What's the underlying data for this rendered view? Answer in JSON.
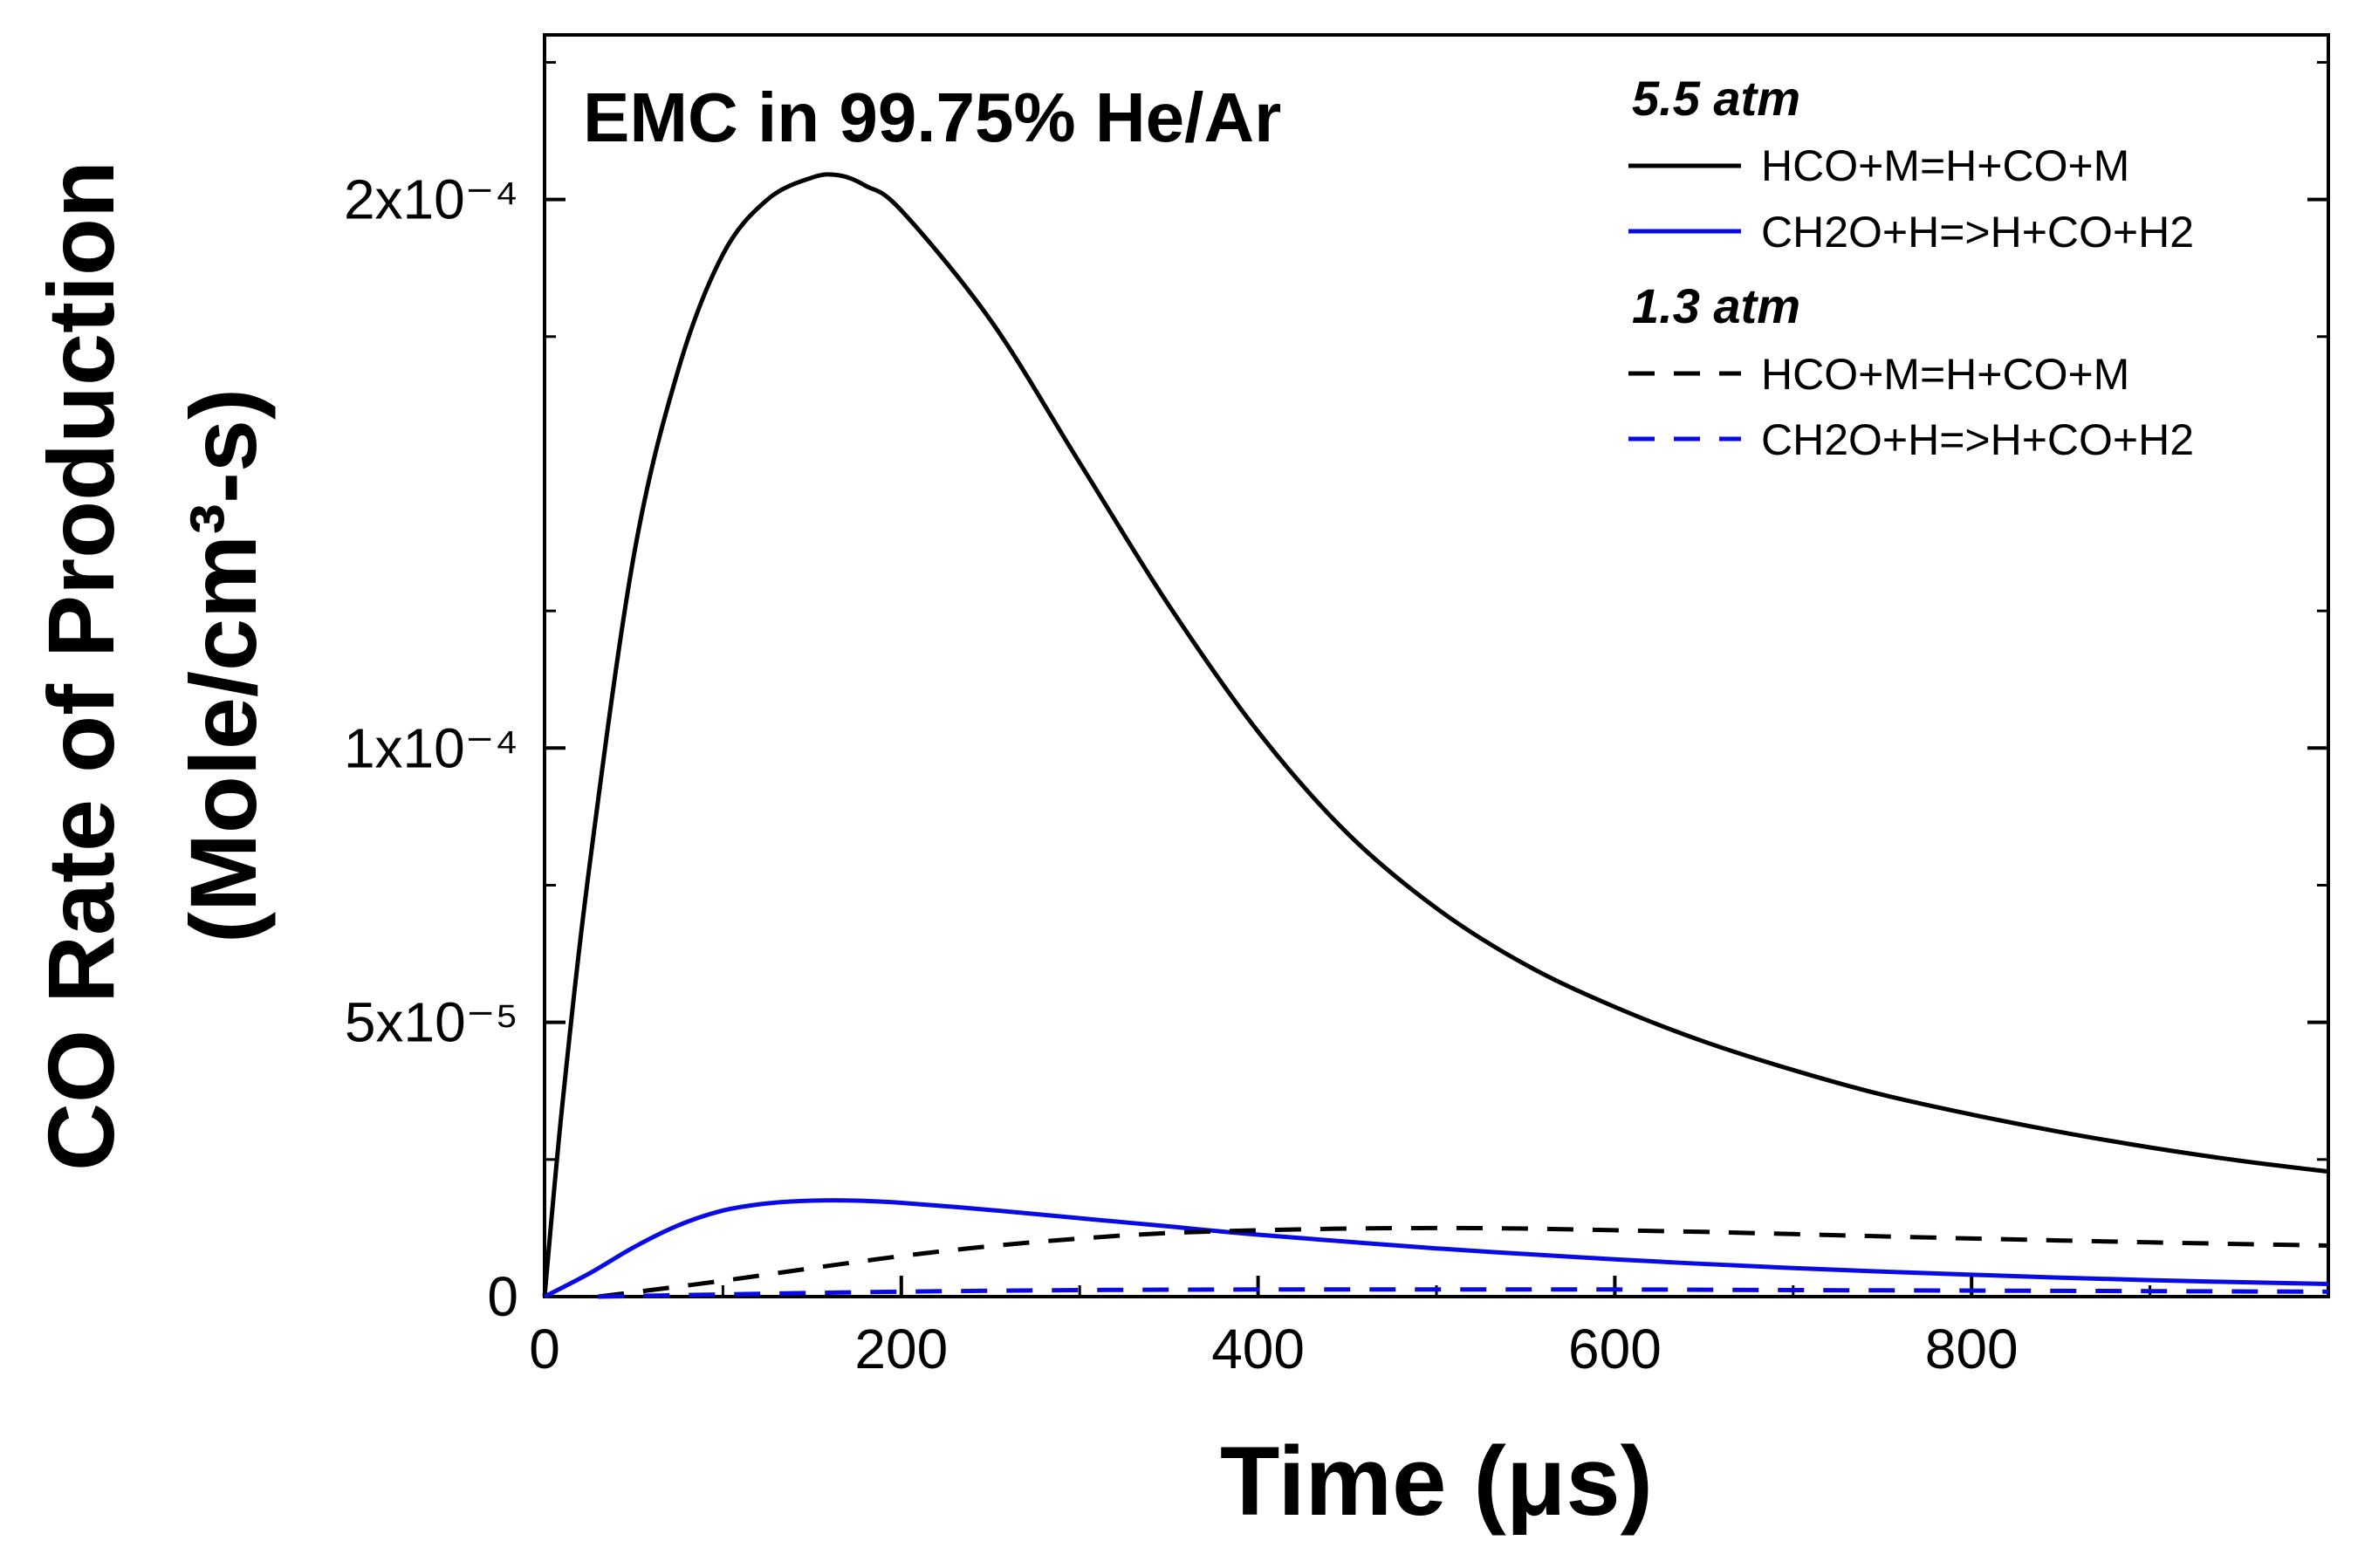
{
  "chart_data": {
    "type": "line",
    "title": "EMC in 99.75% He/Ar",
    "xlabel": "Time (μs)",
    "ylabel_line1": "CO Rate of Production",
    "ylabel_line2": "(Mole/cm³-s)",
    "xlim": [
      0,
      1000
    ],
    "ylim": [
      0,
      0.00023
    ],
    "x_ticks": [
      {
        "value": 0,
        "label": "0"
      },
      {
        "value": 200,
        "label": "200"
      },
      {
        "value": 400,
        "label": "400"
      },
      {
        "value": 600,
        "label": "600"
      },
      {
        "value": 800,
        "label": "800"
      }
    ],
    "y_ticks": [
      {
        "value": 0,
        "label": "0"
      },
      {
        "value": 5e-05,
        "label": "5x10⁻⁵"
      },
      {
        "value": 0.0001,
        "label": "1x10⁻⁴"
      },
      {
        "value": 0.0002,
        "label": "2x10⁻⁴"
      }
    ],
    "legend_groups": [
      {
        "title": "5.5 atm"
      },
      {
        "title": "1.3 atm"
      }
    ],
    "series": [
      {
        "name": "HCO+M=H+CO+M",
        "group": "5.5 atm",
        "color": "#000000",
        "dash": "solid",
        "x": [
          0,
          10,
          25,
          50,
          75,
          100,
          125,
          150,
          165,
          180,
          200,
          250,
          300,
          350,
          400,
          450,
          500,
          550,
          600,
          650,
          700,
          750,
          800,
          850,
          900,
          950,
          1000
        ],
        "y": [
          0,
          3.5e-05,
          7.8e-05,
          0.000135,
          0.000169,
          0.00019,
          0.0002,
          0.000204,
          0.0002044,
          0.0002025,
          0.000198,
          0.000178,
          0.000152,
          0.000126,
          0.000103,
          8.45e-05,
          7.08e-05,
          6.05e-05,
          5.28e-05,
          4.65e-05,
          4.13e-05,
          3.68e-05,
          3.32e-05,
          3e-05,
          2.72e-05,
          2.48e-05,
          2.28e-05
        ]
      },
      {
        "name": "CH2O+H=>H+CO+H2",
        "group": "5.5 atm",
        "color": "#0a0ae6",
        "dash": "solid",
        "x": [
          0,
          25,
          50,
          75,
          100,
          125,
          150,
          175,
          200,
          250,
          300,
          350,
          400,
          500,
          600,
          700,
          800,
          900,
          1000
        ],
        "y": [
          0,
          4.2e-06,
          9e-06,
          1.3e-05,
          1.57e-05,
          1.7e-05,
          1.75e-05,
          1.75e-05,
          1.71e-05,
          1.58e-05,
          1.43e-05,
          1.28e-05,
          1.13e-05,
          8.8e-06,
          6.8e-06,
          5.2e-06,
          4e-06,
          3e-06,
          2.3e-06
        ]
      },
      {
        "name": "HCO+M=H+CO+M",
        "group": "1.3 atm",
        "color": "#000000",
        "dash": "dashed",
        "x": [
          30,
          50,
          100,
          150,
          200,
          250,
          300,
          350,
          400,
          450,
          500,
          550,
          600,
          650,
          700,
          800,
          900,
          1000
        ],
        "y": [
          0,
          8e-07,
          2.9e-06,
          5.2e-06,
          7.4e-06,
          9.2e-06,
          1.06e-05,
          1.16e-05,
          1.21e-05,
          1.24e-05,
          1.25e-05,
          1.24e-05,
          1.21e-05,
          1.18e-05,
          1.14e-05,
          1.06e-05,
          9.9e-06,
          9.3e-06
        ]
      },
      {
        "name": "CH2O+H=>H+CO+H2",
        "group": "1.3 atm",
        "color": "#0a0ae6",
        "dash": "dashed",
        "x": [
          30,
          100,
          200,
          300,
          400,
          500,
          600,
          700,
          800,
          900,
          1000
        ],
        "y": [
          0,
          4e-07,
          9e-07,
          1.2e-06,
          1.3e-06,
          1.3e-06,
          1.3e-06,
          1.2e-06,
          1.1e-06,
          1e-06,
          9e-07
        ]
      }
    ]
  }
}
